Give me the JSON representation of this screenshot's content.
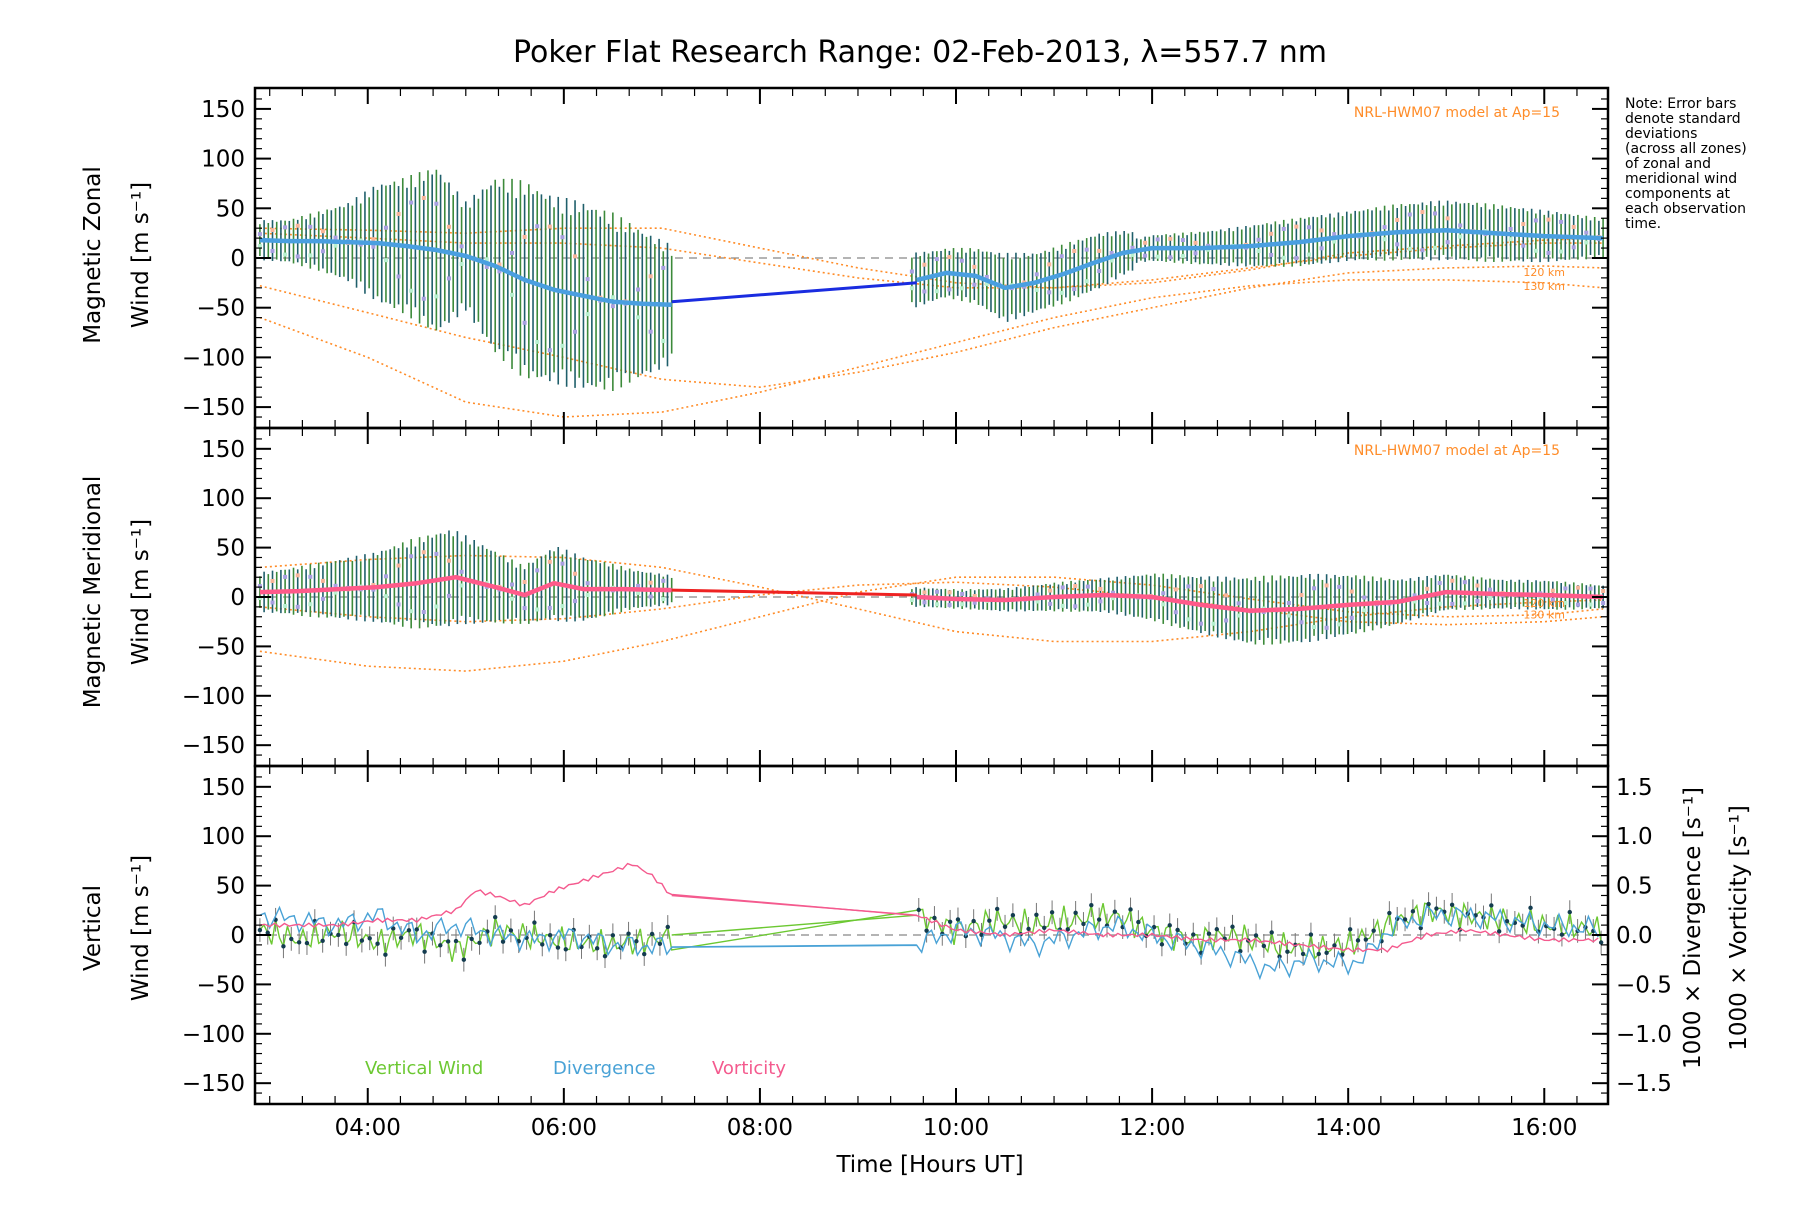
{
  "chart_data": {
    "type": "line",
    "title": "Poker Flat Research Range: 02-Feb-2013, λ=557.7 nm",
    "xlabel": "Time [Hours UT]",
    "xlim": [
      2.85,
      16.65
    ],
    "xticks": [
      4,
      6,
      8,
      10,
      12,
      14,
      16
    ],
    "xtick_labels": [
      "04:00",
      "06:00",
      "08:00",
      "10:00",
      "12:00",
      "14:00",
      "16:00"
    ],
    "note": [
      "Note: Error bars",
      "denote standard",
      "deviations",
      "(across all zones)",
      "of zonal and",
      "meridional wind",
      "components at",
      "each observation",
      "time."
    ],
    "colors": {
      "zonal": "#4a9fe0",
      "zonal_gap": "#1a2ce0",
      "meridional": "#ff5a8a",
      "meridional_gap": "#ee2222",
      "errbar_a": "#1f5f6b",
      "errbar_b": "#3c8a3a",
      "zone_scatter": "#a8a0e0",
      "zone_pink": "#f7b59a",
      "zone_green": "#b8f0d0",
      "model": "#ff8c28",
      "vertical": "#6cc832",
      "divergence": "#49a2d6",
      "vorticity": "#f45a8e",
      "zero_line": "#888888"
    },
    "panels": [
      {
        "name": "zonal",
        "ylabel_line1": "Magnetic Zonal",
        "ylabel_line2": "Wind [m s⁻¹]",
        "ylim": [
          -165,
          165
        ],
        "yticks": [
          150,
          100,
          50,
          0,
          -50,
          -100,
          -150
        ],
        "ytick_labels": [
          "150",
          "100",
          "50",
          "0",
          "−50",
          "−100",
          "−150"
        ],
        "model_label": "NRL-HWM07 model at Ap=15",
        "model_km_labels": [
          "120 km",
          "130 km"
        ],
        "model_km_values": [
          -18,
          -32
        ],
        "segments": [
          {
            "x": [
              2.9,
              3.2,
              3.5,
              3.8,
              4.1,
              4.4,
              4.7,
              5.0,
              5.3,
              5.6,
              5.9,
              6.2,
              6.5,
              6.8,
              7.1
            ],
            "y": [
              18,
              17,
              17,
              16,
              15,
              12,
              8,
              2,
              -8,
              -22,
              -32,
              -38,
              -44,
              -46,
              -47
            ]
          },
          {
            "x": [
              9.6,
              9.9,
              10.2,
              10.5,
              10.8,
              11.1,
              11.4,
              11.7,
              12.0,
              12.5,
              13.0,
              13.5,
              14.0,
              14.5,
              15.0,
              15.5,
              16.0,
              16.6
            ],
            "y": [
              -22,
              -15,
              -18,
              -30,
              -25,
              -16,
              -5,
              5,
              10,
              10,
              12,
              16,
              22,
              26,
              28,
              25,
              22,
              20
            ]
          }
        ],
        "gap": {
          "x": [
            7.1,
            9.6
          ],
          "y": [
            -44,
            -25
          ]
        },
        "errbars": [
          {
            "x_start": 2.9,
            "x_end": 7.1,
            "half_width": [
              20,
              22,
              30,
              40,
              60,
              70,
              85,
              55,
              90,
              100,
              95,
              95,
              90,
              75,
              60
            ]
          },
          {
            "x_start": 9.55,
            "x_end": 11.8,
            "half_width": [
              28,
              25,
              28,
              35,
              30,
              30,
              28,
              20
            ]
          },
          {
            "x_start": 11.8,
            "x_end": 16.6,
            "half_width": [
              12,
              15,
              18,
              22,
              25,
              25,
              28,
              30,
              30,
              28,
              25,
              20
            ]
          }
        ],
        "models": [
          {
            "x": [
              2.9,
              4,
              5,
              6,
              7,
              8,
              9,
              10,
              11,
              12,
              13,
              14,
              15,
              16,
              16.6
            ],
            "y": [
              -28,
              -55,
              -80,
              -100,
              -122,
              -130,
              -115,
              -95,
              -70,
              -50,
              -30,
              -15,
              -10,
              -8,
              -10
            ]
          },
          {
            "x": [
              2.9,
              4,
              5,
              6,
              7,
              8,
              9,
              10,
              11,
              12,
              13,
              14,
              15,
              16,
              16.6
            ],
            "y": [
              -60,
              -100,
              -145,
              -160,
              -155,
              -135,
              -110,
              -85,
              -60,
              -40,
              -28,
              -22,
              -22,
              -25,
              -30
            ]
          },
          {
            "x": [
              2.9,
              4,
              5,
              6,
              7,
              8,
              9,
              10,
              11,
              12,
              13,
              14,
              15,
              16,
              16.6
            ],
            "y": [
              30,
              28,
              25,
              30,
              30,
              10,
              -10,
              -25,
              -30,
              -25,
              -12,
              5,
              12,
              18,
              20
            ]
          },
          {
            "x": [
              2.9,
              4,
              5,
              6,
              7,
              8,
              9,
              10,
              11,
              12,
              13,
              14,
              15,
              16,
              16.6
            ],
            "y": [
              25,
              20,
              15,
              15,
              10,
              -5,
              -20,
              -30,
              -30,
              -22,
              -10,
              2,
              10,
              15,
              15
            ]
          }
        ]
      },
      {
        "name": "meridional",
        "ylabel_line1": "Magnetic Meridional",
        "ylabel_line2": "Wind [m s⁻¹]",
        "ylim": [
          -165,
          165
        ],
        "yticks": [
          150,
          100,
          50,
          0,
          -50,
          -100,
          -150
        ],
        "ytick_labels": [
          "150",
          "100",
          "50",
          "0",
          "−50",
          "−100",
          "−150"
        ],
        "model_label": "NRL-HWM07 model at Ap=15",
        "model_km_labels": [
          "120 km",
          "130 km"
        ],
        "model_km_values": [
          -10,
          -22
        ],
        "segments": [
          {
            "x": [
              2.9,
              3.3,
              3.7,
              4.1,
              4.5,
              4.9,
              5.3,
              5.6,
              5.9,
              6.2,
              6.6,
              7.1
            ],
            "y": [
              5,
              6,
              8,
              10,
              14,
              20,
              10,
              2,
              14,
              8,
              8,
              7
            ]
          },
          {
            "x": [
              9.6,
              10.0,
              10.5,
              11.0,
              11.5,
              12.0,
              12.5,
              13.0,
              13.5,
              14.0,
              14.5,
              15.0,
              15.5,
              16.0,
              16.6
            ],
            "y": [
              0,
              -2,
              -3,
              0,
              2,
              0,
              -8,
              -14,
              -12,
              -8,
              -5,
              5,
              3,
              2,
              0
            ]
          }
        ],
        "gap": {
          "x": [
            7.1,
            9.6
          ],
          "y": [
            7,
            2
          ]
        },
        "errbars": [
          {
            "x_start": 2.9,
            "x_end": 7.1,
            "half_width": [
              20,
              25,
              30,
              35,
              45,
              50,
              40,
              30,
              38,
              30,
              20,
              15
            ]
          },
          {
            "x_start": 9.55,
            "x_end": 16.6,
            "half_width": [
              10,
              10,
              12,
              15,
              18,
              25,
              30,
              35,
              35,
              30,
              22,
              18,
              15,
              15,
              12
            ]
          }
        ],
        "models": [
          {
            "x": [
              2.9,
              4,
              5,
              6,
              7,
              8,
              9,
              10,
              11,
              12,
              13,
              14,
              15,
              16,
              16.6
            ],
            "y": [
              -55,
              -70,
              -75,
              -65,
              -45,
              -20,
              5,
              20,
              20,
              12,
              -2,
              -15,
              -20,
              -18,
              -12
            ]
          },
          {
            "x": [
              2.9,
              4,
              5,
              6,
              7,
              8,
              9,
              10,
              11,
              12,
              13,
              14,
              15,
              16,
              16.6
            ],
            "y": [
              30,
              38,
              42,
              40,
              30,
              10,
              -12,
              -35,
              -45,
              -45,
              -35,
              -20,
              -10,
              -5,
              -3
            ]
          },
          {
            "x": [
              2.9,
              4,
              5,
              6,
              7,
              8,
              9,
              10,
              11,
              12,
              13,
              14,
              15,
              16,
              16.6
            ],
            "y": [
              -10,
              -20,
              -25,
              -22,
              -12,
              2,
              12,
              15,
              10,
              0,
              -12,
              -25,
              -28,
              -25,
              -20
            ]
          }
        ]
      },
      {
        "name": "vertical",
        "ylabel_line1": "Vertical",
        "ylabel_line2": "Wind [m s⁻¹]",
        "ylim": [
          -165,
          165
        ],
        "yticks": [
          150,
          100,
          50,
          0,
          -50,
          -100,
          -150
        ],
        "ytick_labels": [
          "150",
          "100",
          "50",
          "0",
          "−50",
          "−100",
          "−150"
        ],
        "y2lim": [
          -1.65,
          1.65
        ],
        "y2ticks": [
          1.5,
          1.0,
          0.5,
          0.0,
          -0.5,
          -1.0,
          -1.5
        ],
        "y2tick_labels": [
          "1.5",
          "1.0",
          "0.5",
          "0.0",
          "−0.5",
          "−1.0",
          "−1.5"
        ],
        "y2label_divergence": "1000 × Divergence [s⁻¹]",
        "y2label_vorticity": "1000 × Vorticity [s⁻¹]",
        "legend": [
          "Vertical Wind",
          "Divergence",
          "Vorticity"
        ],
        "vertical_wind": {
          "x": [
            2.9,
            3.3,
            3.7,
            4.1,
            4.5,
            4.9,
            5.3,
            5.7,
            6.1,
            6.5,
            6.9,
            7.1,
            9.6,
            10.0,
            10.4,
            10.8,
            11.2,
            11.6,
            12.0,
            12.4,
            12.8,
            13.2,
            13.6,
            14.0,
            14.4,
            14.8,
            15.2,
            15.6,
            16.0,
            16.6
          ],
          "y": [
            5,
            -5,
            3,
            -8,
            2,
            -15,
            5,
            -2,
            -8,
            -10,
            -5,
            0,
            20,
            5,
            15,
            10,
            15,
            20,
            5,
            -5,
            0,
            -10,
            -15,
            -10,
            10,
            25,
            20,
            15,
            10,
            5
          ]
        },
        "divergence": {
          "x": [
            2.9,
            3.3,
            3.7,
            4.1,
            4.5,
            4.9,
            5.3,
            5.7,
            6.1,
            6.5,
            7.1,
            9.6,
            10.0,
            10.4,
            10.8,
            11.2,
            11.6,
            12.0,
            12.4,
            12.8,
            13.2,
            13.6,
            14.0,
            14.2,
            14.4,
            14.8,
            15.2,
            15.6,
            16.0,
            16.6
          ],
          "y": [
            0.2,
            0.15,
            0.1,
            0.2,
            0.0,
            0.1,
            0.0,
            -0.05,
            0.0,
            -0.1,
            -0.12,
            -0.1,
            0.05,
            0.0,
            -0.1,
            0.0,
            0.1,
            0.0,
            -0.1,
            -0.2,
            -0.35,
            -0.25,
            -0.3,
            -0.2,
            0.05,
            0.2,
            0.2,
            0.15,
            0.1,
            0.05
          ]
        },
        "vorticity": {
          "x": [
            2.9,
            3.3,
            3.7,
            4.1,
            4.5,
            4.9,
            5.1,
            5.3,
            5.6,
            5.9,
            6.2,
            6.5,
            6.7,
            6.9,
            7.1,
            9.6,
            10.0,
            10.5,
            11.0,
            11.5,
            12.0,
            12.5,
            13.0,
            13.5,
            14.0,
            14.4,
            14.8,
            15.2,
            15.6,
            16.0,
            16.6
          ],
          "y": [
            0.1,
            0.1,
            0.1,
            0.15,
            0.15,
            0.25,
            0.45,
            0.4,
            0.3,
            0.45,
            0.55,
            0.65,
            0.72,
            0.6,
            0.4,
            0.2,
            0.05,
            0.0,
            0.05,
            0.0,
            0.0,
            -0.05,
            -0.05,
            -0.1,
            -0.15,
            -0.15,
            0.0,
            0.05,
            0.0,
            -0.05,
            -0.05
          ]
        }
      }
    ]
  }
}
